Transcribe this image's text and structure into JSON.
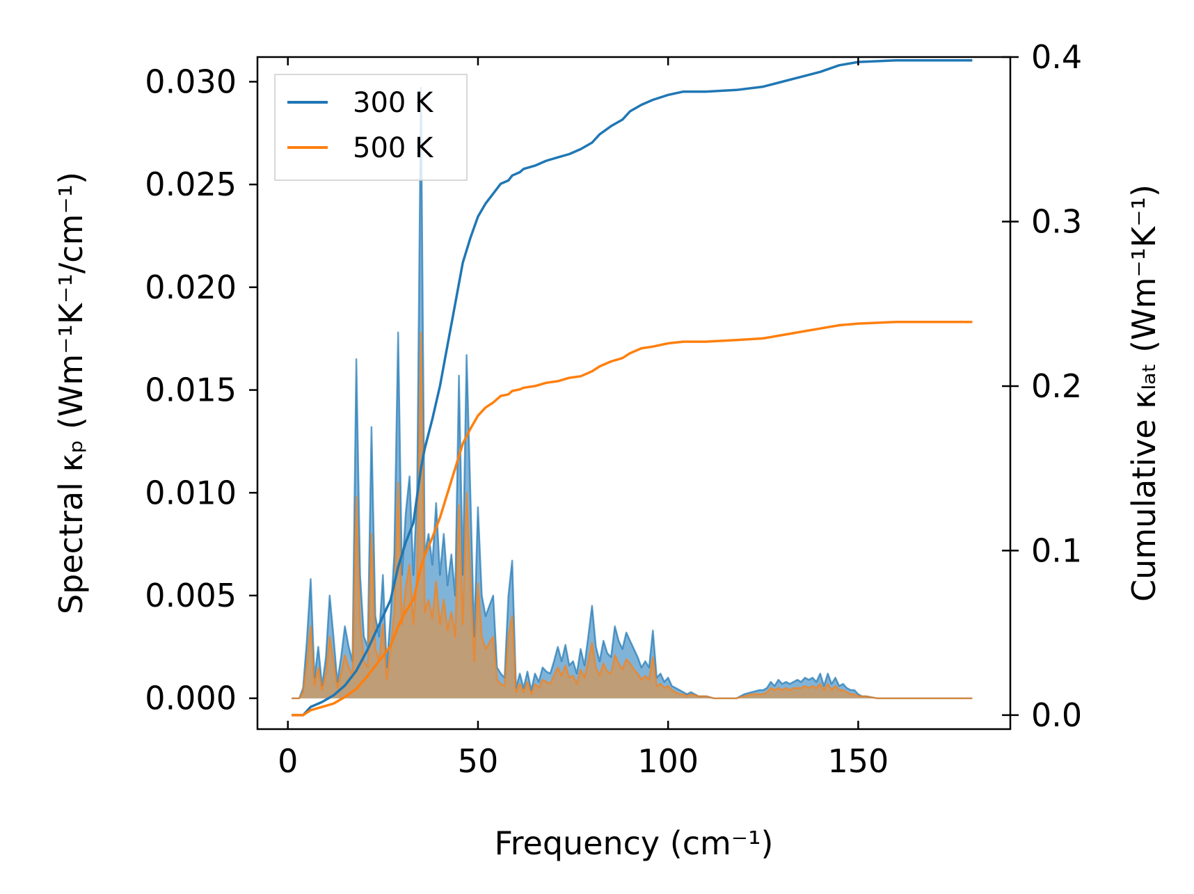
{
  "chart_data": {
    "type": "area",
    "xlabel": "Frequency (cm⁻¹)",
    "ylabel_left": "Spectral κₚ (Wm⁻¹K⁻¹/cm⁻¹)",
    "ylabel_right": "Cumulative κₗₐₜ (Wm⁻¹K⁻¹)",
    "xlim": [
      -8,
      190
    ],
    "ylim_left": [
      -0.0015,
      0.0312
    ],
    "ylim_right": [
      -0.0085,
      0.4
    ],
    "x_ticks": [
      0,
      50,
      100,
      150
    ],
    "x_tick_labels": [
      "0",
      "50",
      "100",
      "150"
    ],
    "y_left_ticks": [
      0,
      0.005,
      0.01,
      0.015,
      0.02,
      0.025,
      0.03
    ],
    "y_left_tick_labels": [
      "0.000",
      "0.005",
      "0.010",
      "0.015",
      "0.020",
      "0.025",
      "0.030"
    ],
    "y_right_ticks": [
      0,
      0.1,
      0.2,
      0.3,
      0.4
    ],
    "y_right_tick_labels": [
      "0.0",
      "0.1",
      "0.2",
      "0.3",
      "0.4"
    ],
    "legend_position": "upper-left",
    "grid": false,
    "colors": {
      "s300": "#1f77b4",
      "s500": "#ff7f0e",
      "fill300": "#6aa6d1",
      "fill500": "#c59a6c"
    },
    "spectral_x": [
      1,
      2,
      3,
      4,
      5,
      6,
      7,
      8,
      9,
      10,
      11,
      12,
      13,
      14,
      15,
      16,
      17,
      18,
      19,
      20,
      21,
      22,
      23,
      24,
      25,
      26,
      27,
      28,
      29,
      30,
      31,
      32,
      33,
      34,
      35,
      36,
      37,
      38,
      39,
      40,
      41,
      42,
      43,
      44,
      45,
      46,
      47,
      48,
      49,
      50,
      51,
      52,
      53,
      54,
      55,
      56,
      57,
      58,
      59,
      60,
      61,
      62,
      63,
      64,
      65,
      66,
      67,
      68,
      69,
      70,
      71,
      72,
      73,
      74,
      75,
      76,
      77,
      78,
      79,
      80,
      81,
      82,
      83,
      84,
      85,
      86,
      87,
      88,
      89,
      90,
      91,
      92,
      93,
      94,
      95,
      96,
      97,
      98,
      99,
      100,
      101,
      102,
      103,
      104,
      105,
      106,
      108,
      110,
      112,
      114,
      116,
      118,
      120,
      122,
      124,
      125,
      126,
      127,
      128,
      129,
      130,
      131,
      132,
      133,
      134,
      135,
      136,
      137,
      138,
      139,
      140,
      141,
      142,
      143,
      144,
      145,
      146,
      147,
      148,
      149,
      150,
      151,
      152,
      155,
      160,
      170,
      180
    ],
    "series": [
      {
        "name": "300 K",
        "spectral": [
          0,
          0,
          0,
          0.0005,
          0.0028,
          0.0058,
          0.001,
          0.0025,
          0.0006,
          0.002,
          0.005,
          0.003,
          0.0008,
          0.002,
          0.0035,
          0.0025,
          0.0018,
          0.0165,
          0.006,
          0.003,
          0.0025,
          0.0132,
          0.004,
          0.003,
          0.006,
          0.0015,
          0.004,
          0.007,
          0.0178,
          0.006,
          0.009,
          0.0108,
          0.006,
          0.01,
          0.0297,
          0.007,
          0.008,
          0.0065,
          0.0095,
          0.006,
          0.008,
          0.0055,
          0.007,
          0.005,
          0.0157,
          0.006,
          0.0167,
          0.01,
          0.003,
          0.0093,
          0.005,
          0.004,
          0.0045,
          0.005,
          0.0015,
          0.0012,
          0.001,
          0.005,
          0.0067,
          0.0005,
          0.0012,
          0.0005,
          0.0013,
          0.0004,
          0.0012,
          0.0008,
          0.0015,
          0.0013,
          0.0012,
          0.0018,
          0.0025,
          0.0018,
          0.0026,
          0.0016,
          0.0018,
          0.0012,
          0.0024,
          0.0016,
          0.003,
          0.0045,
          0.0025,
          0.0018,
          0.0028,
          0.0022,
          0.002,
          0.0035,
          0.0028,
          0.0024,
          0.0032,
          0.0028,
          0.0024,
          0.002,
          0.0015,
          0.0018,
          0.0015,
          0.0033,
          0.001,
          0.0012,
          0.0008,
          0.001,
          0.0006,
          0.0005,
          0.0004,
          0.0003,
          0.0002,
          0.0003,
          0.0001,
          0.0001,
          0,
          0,
          0,
          0,
          0.0002,
          0.0003,
          0.0004,
          0.0004,
          0.0005,
          0.0008,
          0.0006,
          0.0009,
          0.0007,
          0.0008,
          0.0007,
          0.0008,
          0.0009,
          0.0008,
          0.001,
          0.0009,
          0.001,
          0.0008,
          0.0012,
          0.0006,
          0.0012,
          0.0007,
          0.001,
          0.0006,
          0.0007,
          0.0005,
          0.0004,
          0.0004,
          0.0002,
          0.0001,
          0.0001,
          0,
          0,
          0,
          0
        ],
        "cumulative": {
          "x": [
            1,
            4,
            6,
            9,
            12,
            15,
            18,
            21,
            24,
            27,
            29,
            31,
            33,
            35,
            36,
            38,
            40,
            42,
            44,
            46,
            48,
            50,
            52,
            54,
            56,
            58,
            59,
            61,
            62,
            65,
            68,
            71,
            74,
            77,
            80,
            82,
            85,
            88,
            90,
            93,
            96,
            100,
            104,
            110,
            118,
            125,
            130,
            135,
            140,
            145,
            150,
            160,
            180
          ],
          "y": [
            0,
            0,
            0.005,
            0.008,
            0.012,
            0.018,
            0.027,
            0.04,
            0.055,
            0.07,
            0.09,
            0.105,
            0.117,
            0.15,
            0.162,
            0.18,
            0.2,
            0.225,
            0.25,
            0.275,
            0.29,
            0.303,
            0.311,
            0.317,
            0.323,
            0.325,
            0.328,
            0.33,
            0.332,
            0.334,
            0.337,
            0.339,
            0.341,
            0.344,
            0.348,
            0.353,
            0.358,
            0.362,
            0.367,
            0.371,
            0.374,
            0.377,
            0.379,
            0.379,
            0.38,
            0.382,
            0.385,
            0.388,
            0.391,
            0.395,
            0.397,
            0.398,
            0.398
          ]
        }
      },
      {
        "name": "500 K",
        "spectral": [
          0,
          0,
          0,
          0.0003,
          0.0017,
          0.0035,
          0.0006,
          0.0015,
          0.0004,
          0.0012,
          0.003,
          0.0018,
          0.0005,
          0.0012,
          0.0021,
          0.0015,
          0.0011,
          0.0098,
          0.0036,
          0.0018,
          0.0015,
          0.008,
          0.0024,
          0.0018,
          0.0036,
          0.0009,
          0.0024,
          0.0042,
          0.0105,
          0.0036,
          0.0054,
          0.0065,
          0.0036,
          0.006,
          0.0178,
          0.0042,
          0.0048,
          0.0039,
          0.0057,
          0.0036,
          0.0048,
          0.0033,
          0.0042,
          0.003,
          0.0094,
          0.0036,
          0.01,
          0.006,
          0.0018,
          0.0056,
          0.003,
          0.0024,
          0.0027,
          0.003,
          0.0009,
          0.0007,
          0.0006,
          0.003,
          0.004,
          0.0003,
          0.0007,
          0.0003,
          0.0008,
          0.0002,
          0.0007,
          0.0005,
          0.0009,
          0.0008,
          0.0007,
          0.0011,
          0.0015,
          0.0011,
          0.0016,
          0.001,
          0.0011,
          0.0007,
          0.0014,
          0.001,
          0.0018,
          0.0027,
          0.0015,
          0.0011,
          0.0017,
          0.0013,
          0.0012,
          0.0021,
          0.0017,
          0.0014,
          0.0019,
          0.0017,
          0.0014,
          0.0012,
          0.0009,
          0.0011,
          0.0009,
          0.002,
          0.0006,
          0.0007,
          0.0005,
          0.0006,
          0.0004,
          0.0003,
          0.0002,
          0.0002,
          0.0001,
          0.0002,
          0.0001,
          0.0001,
          0,
          0,
          0,
          0,
          0.0001,
          0.0002,
          0.0002,
          0.0002,
          0.0003,
          0.0005,
          0.0004,
          0.0005,
          0.0004,
          0.0005,
          0.0004,
          0.0005,
          0.0005,
          0.0005,
          0.0006,
          0.0005,
          0.0006,
          0.0005,
          0.0007,
          0.0004,
          0.0007,
          0.0004,
          0.0006,
          0.0004,
          0.0004,
          0.0003,
          0.0002,
          0.0002,
          0.0001,
          0.0001,
          0.0001,
          0,
          0,
          0,
          0
        ],
        "cumulative": {
          "x": [
            1,
            4,
            6,
            9,
            12,
            15,
            18,
            21,
            24,
            27,
            29,
            31,
            33,
            35,
            36,
            38,
            40,
            42,
            44,
            46,
            48,
            50,
            52,
            54,
            56,
            58,
            59,
            61,
            62,
            65,
            68,
            71,
            74,
            77,
            80,
            82,
            85,
            88,
            90,
            93,
            96,
            100,
            104,
            110,
            118,
            125,
            130,
            135,
            140,
            145,
            150,
            160,
            180
          ],
          "y": [
            0,
            0,
            0.003,
            0.005,
            0.007,
            0.011,
            0.016,
            0.024,
            0.033,
            0.042,
            0.054,
            0.063,
            0.07,
            0.09,
            0.097,
            0.108,
            0.12,
            0.135,
            0.15,
            0.165,
            0.174,
            0.182,
            0.187,
            0.19,
            0.194,
            0.195,
            0.197,
            0.198,
            0.199,
            0.2,
            0.202,
            0.203,
            0.205,
            0.206,
            0.209,
            0.212,
            0.215,
            0.217,
            0.22,
            0.223,
            0.224,
            0.226,
            0.227,
            0.227,
            0.228,
            0.229,
            0.231,
            0.233,
            0.235,
            0.237,
            0.238,
            0.239,
            0.239
          ]
        }
      }
    ]
  }
}
